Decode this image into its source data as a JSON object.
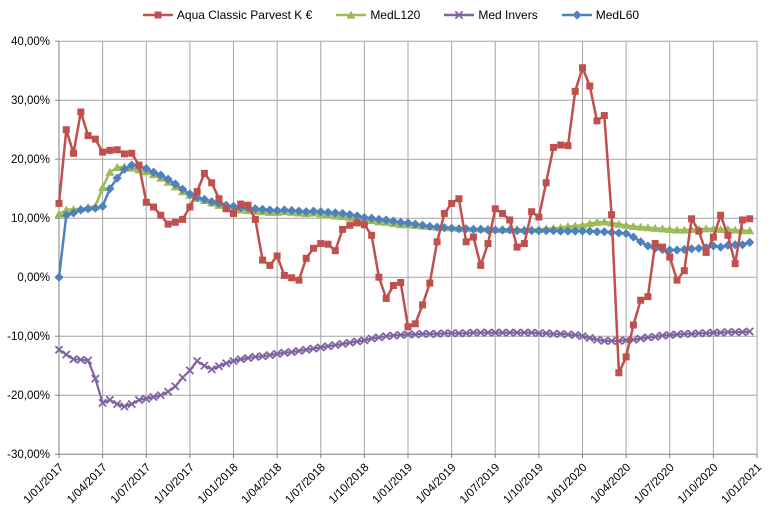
{
  "legend": {
    "items": [
      {
        "label": "Aqua Classic Parvest K €",
        "marker": "square",
        "color": "#C0504D"
      },
      {
        "label": "MedL120",
        "marker": "triangle",
        "color": "#9BBB59"
      },
      {
        "label": "Med Invers",
        "marker": "x",
        "color": "#8064A2"
      },
      {
        "label": "MedL60",
        "marker": "diamond",
        "color": "#4F81BD"
      }
    ]
  },
  "colors": {
    "gridline": "#A6A6A6",
    "axis": "#808080",
    "text": "#000000",
    "background": "#FFFFFF"
  },
  "chart_data": {
    "type": "line",
    "title": "",
    "xlabel": "",
    "ylabel": "",
    "grid": true,
    "legend_position": "top",
    "ylim": [
      -30,
      40
    ],
    "y_tick_values": [
      40,
      30,
      20,
      10,
      0,
      -10,
      -20,
      -30
    ],
    "y_tick_labels": [
      "40,00%",
      "30,00%",
      "20,00%",
      "10,00%",
      "0,00%",
      "-10,00%",
      "-20,00%",
      "-30,00%"
    ],
    "x_tick_labels": [
      "1/01/2017",
      "1/04/2017",
      "1/07/2017",
      "1/10/2017",
      "1/01/2018",
      "1/04/2018",
      "1/07/2018",
      "1/10/2018",
      "1/01/2019",
      "1/04/2019",
      "1/07/2019",
      "1/10/2019",
      "1/01/2020",
      "1/04/2020",
      "1/07/2020",
      "1/10/2020",
      "1/01/2021"
    ],
    "points_per_quarter": 6,
    "x_range_note": "96 points evenly spaced, ~bi-weekly, from 1/01/2017 to mid-Dec 2020",
    "series": [
      {
        "name": "Aqua Classic Parvest K €",
        "color": "#C0504D",
        "marker": "square",
        "values": [
          12.5,
          25.0,
          21.0,
          28.0,
          24.0,
          23.4,
          21.2,
          21.5,
          21.6,
          20.9,
          21.0,
          19.0,
          12.7,
          11.9,
          10.5,
          9.0,
          9.3,
          9.8,
          11.9,
          14.5,
          17.6,
          16.0,
          13.3,
          11.6,
          10.8,
          12.4,
          12.2,
          9.8,
          2.9,
          2.0,
          3.6,
          0.3,
          -0.1,
          -0.5,
          3.2,
          4.9,
          5.7,
          5.6,
          4.5,
          8.1,
          8.8,
          9.2,
          8.9,
          7.1,
          0.0,
          -3.6,
          -1.4,
          -0.9,
          -8.4,
          -7.9,
          -4.7,
          -1.0,
          6.0,
          10.8,
          12.5,
          13.3,
          6.0,
          6.8,
          2.0,
          5.7,
          11.6,
          10.8,
          9.7,
          5.1,
          5.7,
          11.1,
          10.2,
          16.0,
          22.0,
          22.4,
          22.3,
          31.5,
          35.5,
          32.4,
          26.5,
          27.4,
          10.6,
          -16.2,
          -13.5,
          -8.1,
          -3.9,
          -3.3,
          5.7,
          5.1,
          3.4,
          -0.5,
          1.1,
          9.9,
          7.8,
          4.2,
          6.8,
          10.5,
          7.1,
          2.3,
          9.7,
          9.9
        ]
      },
      {
        "name": "MedL120",
        "color": "#9BBB59",
        "marker": "triangle",
        "values": [
          10.7,
          11.4,
          11.5,
          11.6,
          11.8,
          12.0,
          15.2,
          17.8,
          18.6,
          18.7,
          18.5,
          18.2,
          17.9,
          17.4,
          16.8,
          16.1,
          15.3,
          14.5,
          13.9,
          13.4,
          13.0,
          12.6,
          12.2,
          11.9,
          11.6,
          11.4,
          11.3,
          11.2,
          11.1,
          11.0,
          11.0,
          11.1,
          11.0,
          10.9,
          10.8,
          10.9,
          10.7,
          10.6,
          10.4,
          10.3,
          10.1,
          9.9,
          9.7,
          9.6,
          9.4,
          9.3,
          9.1,
          8.9,
          8.9,
          8.8,
          8.7,
          8.6,
          8.5,
          8.4,
          8.4,
          8.3,
          8.3,
          8.2,
          8.2,
          8.2,
          8.1,
          8.1,
          8.1,
          8.1,
          8.1,
          8.1,
          8.1,
          8.2,
          8.3,
          8.4,
          8.6,
          8.7,
          8.8,
          9.1,
          9.3,
          9.4,
          9.2,
          9.0,
          8.8,
          8.6,
          8.5,
          8.4,
          8.3,
          8.2,
          8.1,
          8.0,
          8.0,
          8.1,
          8.1,
          8.2,
          8.2,
          8.1,
          8.1,
          8.0,
          7.9,
          7.9
        ]
      },
      {
        "name": "Med Invers",
        "color": "#8064A2",
        "marker": "x",
        "values": [
          -12.3,
          -13.1,
          -13.9,
          -14.0,
          -14.1,
          -17.2,
          -21.3,
          -20.8,
          -21.5,
          -21.9,
          -21.5,
          -20.8,
          -20.6,
          -20.3,
          -20.0,
          -19.4,
          -18.5,
          -17.0,
          -15.8,
          -14.2,
          -15.0,
          -15.6,
          -15.1,
          -14.6,
          -14.2,
          -13.9,
          -13.7,
          -13.5,
          -13.4,
          -13.2,
          -13.0,
          -12.8,
          -12.7,
          -12.5,
          -12.3,
          -12.1,
          -11.9,
          -11.7,
          -11.5,
          -11.3,
          -11.1,
          -10.9,
          -10.7,
          -10.4,
          -10.2,
          -10.0,
          -9.9,
          -9.8,
          -9.7,
          -9.7,
          -9.6,
          -9.6,
          -9.6,
          -9.5,
          -9.5,
          -9.5,
          -9.5,
          -9.4,
          -9.4,
          -9.4,
          -9.4,
          -9.4,
          -9.4,
          -9.4,
          -9.4,
          -9.4,
          -9.5,
          -9.5,
          -9.6,
          -9.6,
          -9.7,
          -9.8,
          -10.0,
          -10.3,
          -10.6,
          -10.8,
          -10.8,
          -10.8,
          -10.7,
          -10.6,
          -10.4,
          -10.2,
          -10.1,
          -9.9,
          -9.8,
          -9.7,
          -9.6,
          -9.6,
          -9.5,
          -9.5,
          -9.4,
          -9.4,
          -9.3,
          -9.3,
          -9.3,
          -9.2
        ]
      },
      {
        "name": "MedL60",
        "color": "#4F81BD",
        "marker": "diamond",
        "values": [
          0.0,
          10.5,
          10.9,
          11.4,
          11.6,
          11.7,
          12.0,
          15.0,
          16.8,
          18.3,
          19.0,
          18.8,
          18.4,
          17.8,
          17.3,
          16.6,
          15.8,
          14.9,
          14.1,
          13.5,
          13.2,
          12.8,
          12.5,
          12.2,
          12.0,
          11.8,
          11.7,
          11.6,
          11.5,
          11.4,
          11.3,
          11.4,
          11.3,
          11.2,
          11.1,
          11.2,
          11.1,
          11.0,
          10.9,
          10.8,
          10.6,
          10.4,
          10.1,
          10.0,
          9.8,
          9.7,
          9.5,
          9.3,
          9.2,
          9.0,
          8.8,
          8.6,
          8.5,
          8.4,
          8.3,
          8.2,
          8.2,
          8.1,
          8.1,
          8.0,
          8.0,
          8.0,
          8.0,
          7.9,
          7.9,
          7.9,
          7.9,
          7.9,
          7.9,
          7.8,
          7.8,
          7.8,
          7.8,
          7.8,
          7.7,
          7.7,
          7.6,
          7.5,
          7.4,
          6.8,
          6.0,
          5.3,
          4.9,
          4.7,
          4.6,
          4.6,
          4.7,
          4.8,
          4.9,
          5.0,
          5.3,
          5.1,
          5.4,
          5.5,
          5.5,
          5.9
        ]
      }
    ]
  }
}
